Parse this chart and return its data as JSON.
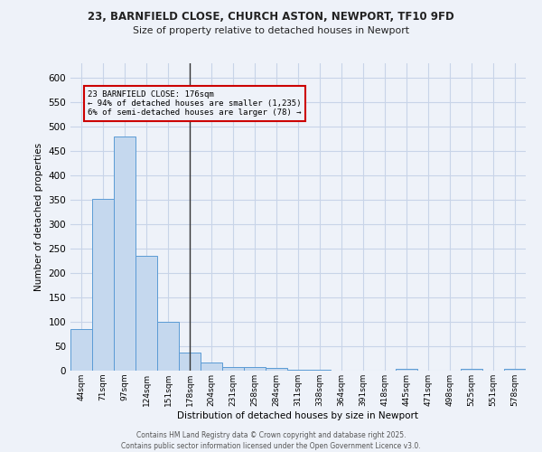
{
  "title_line1": "23, BARNFIELD CLOSE, CHURCH ASTON, NEWPORT, TF10 9FD",
  "title_line2": "Size of property relative to detached houses in Newport",
  "xlabel": "Distribution of detached houses by size in Newport",
  "ylabel": "Number of detached properties",
  "bin_labels": [
    "44sqm",
    "71sqm",
    "97sqm",
    "124sqm",
    "151sqm",
    "178sqm",
    "204sqm",
    "231sqm",
    "258sqm",
    "284sqm",
    "311sqm",
    "338sqm",
    "364sqm",
    "391sqm",
    "418sqm",
    "445sqm",
    "471sqm",
    "498sqm",
    "525sqm",
    "551sqm",
    "578sqm"
  ],
  "bar_values": [
    85,
    352,
    480,
    236,
    100,
    37,
    16,
    7,
    7,
    6,
    2,
    1,
    0,
    0,
    0,
    4,
    0,
    0,
    4,
    0,
    4
  ],
  "bar_color": "#c5d8ee",
  "bar_edge_color": "#5b9bd5",
  "property_line_bin": 5,
  "property_label": "23 BARNFIELD CLOSE: 176sqm",
  "annotation_line1": "← 94% of detached houses are smaller (1,235)",
  "annotation_line2": "6% of semi-detached houses are larger (78) →",
  "vline_color": "#333333",
  "annotation_box_color": "#cc0000",
  "annotation_text_color": "#000000",
  "footer_line1": "Contains HM Land Registry data © Crown copyright and database right 2025.",
  "footer_line2": "Contains public sector information licensed under the Open Government Licence v3.0.",
  "bg_color": "#eef2f9",
  "grid_color": "#c8d4e8",
  "ylim": [
    0,
    630
  ],
  "yticks": [
    0,
    50,
    100,
    150,
    200,
    250,
    300,
    350,
    400,
    450,
    500,
    550,
    600
  ]
}
